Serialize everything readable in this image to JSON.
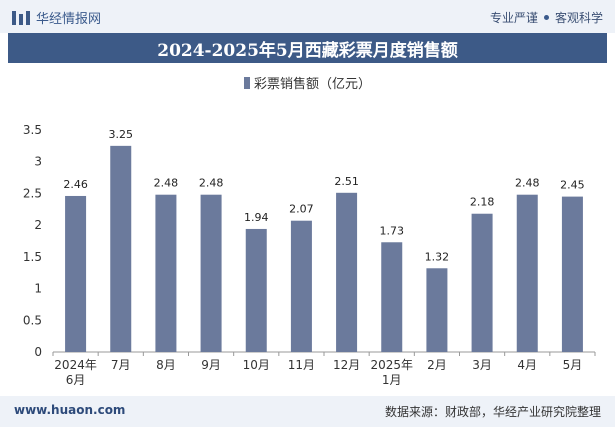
{
  "header": {
    "brand": "华经情报网",
    "tagline_left": "专业严谨",
    "tagline_right": "客观科学"
  },
  "title": "2024-2025年5月西藏彩票月度销售额",
  "footer": {
    "website": "www.huaon.com",
    "source": "数据来源：财政部，华经产业研究院整理"
  },
  "colors": {
    "bar": "#6b7a9c",
    "title_bg": "#3d5a87"
  },
  "chart_data": {
    "type": "bar",
    "categories": [
      "2024年\n6月",
      "7月",
      "8月",
      "9月",
      "10月",
      "11月",
      "12月",
      "2025年\n1月",
      "2月",
      "3月",
      "4月",
      "5月"
    ],
    "series": [
      {
        "name": "彩票销售额（亿元）",
        "values": [
          2.46,
          3.25,
          2.48,
          2.48,
          1.94,
          2.07,
          2.51,
          1.73,
          1.32,
          2.18,
          2.48,
          2.45
        ]
      }
    ],
    "y_ticks": [
      "0",
      "0.5",
      "1",
      "1.5",
      "2",
      "2.5",
      "3",
      "3.5"
    ],
    "ylim": [
      0,
      3.5
    ],
    "grid": false,
    "legend": "top"
  }
}
